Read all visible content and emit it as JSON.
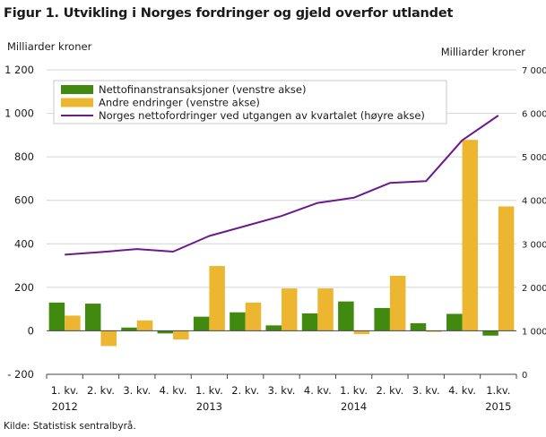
{
  "title": "Figur 1. Utvikling i Norges fordringer og gjeld overfor utlandet",
  "source": "Kilde: Statistisk sentralbyrå.",
  "chart_data": {
    "type": "bar",
    "title": "Figur 1. Utvikling i Norges fordringer og gjeld overfor utlandet",
    "ylabel": "Milliarder  kroner",
    "y2label": "Milliarder  kroner",
    "ylim": [
      -200,
      1200
    ],
    "y2lim": [
      0,
      7000
    ],
    "yticks": [
      -200,
      0,
      200,
      400,
      600,
      800,
      1000,
      1200
    ],
    "ytick_labels": [
      "- 200",
      "0",
      "200",
      "400",
      "600",
      "800",
      "1 000",
      "1 200"
    ],
    "y2ticks": [
      0,
      1000,
      2000,
      3000,
      4000,
      5000,
      6000,
      7000
    ],
    "y2tick_labels": [
      "0",
      "1 000",
      "2 000",
      "3 000",
      "4 000",
      "5 000",
      "6 000",
      "7 000"
    ],
    "grid": true,
    "legend_position": "top-center",
    "categories": [
      "1. kv.",
      "2. kv.",
      "3. kv.",
      "4. kv.",
      "1. kv.",
      "2. kv.",
      "3. kv.",
      "4. kv.",
      "1. kv.",
      "2. kv.",
      "3. kv.",
      "4. kv.",
      "1.kv."
    ],
    "year_labels": [
      {
        "index": 0,
        "label": "2012"
      },
      {
        "index": 4,
        "label": "2013"
      },
      {
        "index": 8,
        "label": "2014"
      },
      {
        "index": 12,
        "label": "2015"
      }
    ],
    "series": [
      {
        "name": "Nettofinanstransaksjoner (venstre akse)",
        "type": "bar",
        "axis": "left",
        "color": "#3f8a0f",
        "values": [
          130,
          125,
          15,
          -12,
          65,
          85,
          25,
          80,
          135,
          105,
          35,
          78,
          -22
        ]
      },
      {
        "name": "Andre endringer (venstre akse)",
        "type": "bar",
        "axis": "left",
        "color": "#ecb631",
        "values": [
          70,
          -70,
          48,
          -40,
          298,
          130,
          195,
          195,
          -15,
          253,
          -5,
          878,
          572
        ]
      },
      {
        "name": "Norges nettofordringer ved utgangen av kvartalet (høyre akse)",
        "type": "line",
        "axis": "right",
        "color": "#6b1a8b",
        "values": [
          2750,
          2810,
          2880,
          2820,
          3180,
          3410,
          3640,
          3940,
          4060,
          4400,
          4440,
          5380,
          5950
        ]
      }
    ]
  }
}
